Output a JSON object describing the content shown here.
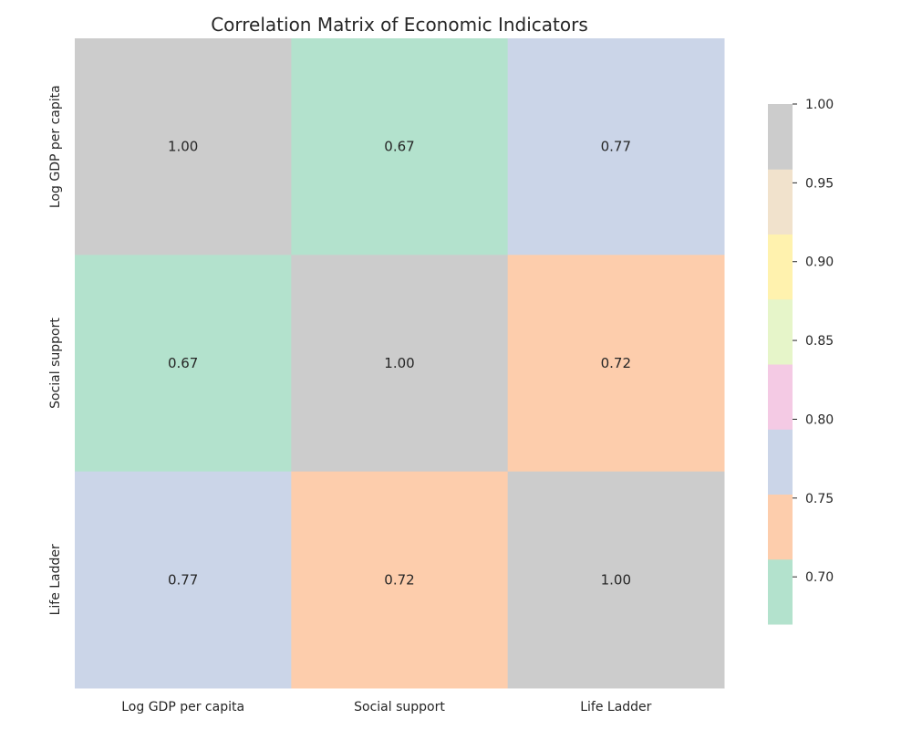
{
  "chart_data": {
    "type": "heatmap",
    "title": "Correlation Matrix of Economic Indicators",
    "x_labels": [
      "Log GDP per capita",
      "Social support",
      "Life Ladder"
    ],
    "y_labels": [
      "Log GDP per capita",
      "Social support",
      "Life Ladder"
    ],
    "matrix": [
      [
        1.0,
        0.67,
        0.77
      ],
      [
        0.67,
        1.0,
        0.72
      ],
      [
        0.77,
        0.72,
        1.0
      ]
    ],
    "annotations": [
      [
        "1.00",
        "0.67",
        "0.77"
      ],
      [
        "0.67",
        "1.00",
        "0.72"
      ],
      [
        "0.77",
        "0.72",
        "1.00"
      ]
    ],
    "colorbar": {
      "min": 0.67,
      "max": 1.0,
      "ticks": [
        0.7,
        0.75,
        0.8,
        0.85,
        0.9,
        0.95,
        1.0
      ],
      "tick_labels": [
        "0.70",
        "0.75",
        "0.80",
        "0.85",
        "0.90",
        "0.95",
        "1.00"
      ],
      "colors": [
        "#b3e2cd",
        "#fdcdac",
        "#cbd5e8",
        "#f4cae4",
        "#e6f5c9",
        "#fff2ae",
        "#f1e2cc",
        "#cccccc"
      ]
    }
  }
}
